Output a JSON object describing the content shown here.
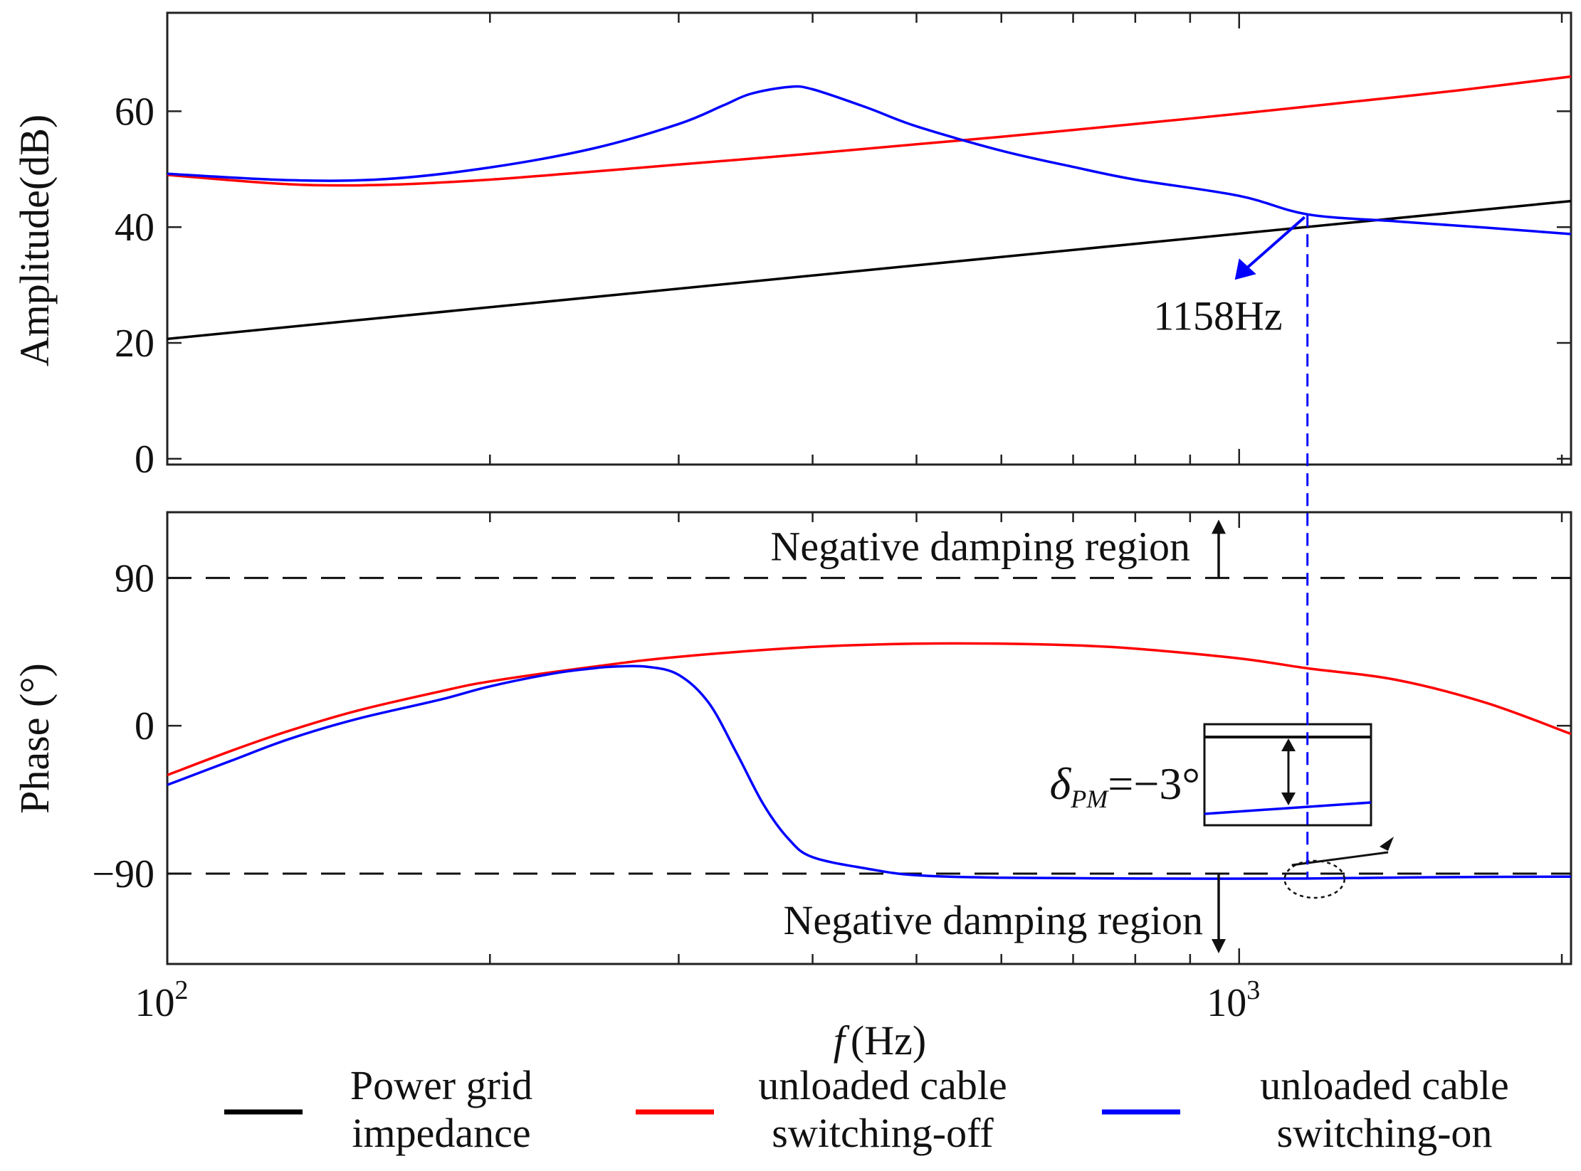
{
  "chart_data": [
    {
      "type": "line",
      "panel": "top",
      "ylabel": "Amplitude(dB)",
      "ylim": [
        -1,
        77
      ],
      "yticks": [
        0,
        20,
        40,
        60
      ],
      "xscale": "log",
      "xlim": [
        100,
        2040
      ],
      "series": [
        {
          "name": "Power grid impedance",
          "color": "#000000",
          "x": [
            100,
            2040
          ],
          "y": [
            20.7,
            44.5
          ]
        },
        {
          "name": "unloaded cable switching-off",
          "color": "#ff0000",
          "x": [
            100,
            130,
            160,
            200,
            250,
            300,
            400,
            500,
            600,
            800,
            1000,
            1300,
            1600,
            2040
          ],
          "y": [
            49.0,
            47.4,
            47.3,
            48.2,
            49.6,
            50.8,
            52.7,
            54.3,
            55.6,
            57.8,
            59.6,
            61.8,
            63.6,
            66.0
          ]
        },
        {
          "name": "unloaded cable switching-on",
          "color": "#0000ff",
          "x": [
            100,
            130,
            160,
            200,
            250,
            300,
            330,
            350,
            380,
            400,
            450,
            500,
            600,
            700,
            800,
            1000,
            1158,
            1400,
            1700,
            2040
          ],
          "y": [
            49.2,
            48.1,
            48.3,
            50.3,
            53.6,
            57.8,
            61.0,
            63.0,
            64.2,
            63.8,
            60.6,
            57.4,
            53.2,
            50.4,
            48.2,
            45.4,
            42.2,
            41.0,
            39.9,
            38.8
          ]
        }
      ],
      "annotations": [
        {
          "text": "1158Hz",
          "x": 1158,
          "y": 42.2
        }
      ]
    },
    {
      "type": "line",
      "panel": "bottom",
      "ylabel": "Phase (°)",
      "xlabel_italic": "f",
      "xlabel_rest": "(Hz)",
      "ylim": [
        -145,
        130
      ],
      "yticks": [
        -90,
        0,
        90
      ],
      "ytick_labels": [
        "−90",
        "0",
        "90"
      ],
      "xscale": "log",
      "xlim": [
        100,
        2040
      ],
      "xtick_base": [
        "10",
        "10"
      ],
      "xtick_exp": [
        "2",
        "3"
      ],
      "xticks": [
        100,
        1000
      ],
      "reference_lines": [
        90,
        -90
      ],
      "series": [
        {
          "name": "unloaded cable switching-off",
          "color": "#ff0000",
          "x": [
            100,
            115,
            130,
            150,
            180,
            200,
            250,
            300,
            400,
            500,
            600,
            700,
            800,
            1000,
            1158,
            1400,
            1700,
            2040
          ],
          "y": [
            -30,
            -15,
            -3,
            9,
            21,
            27,
            36,
            42,
            48,
            50,
            50,
            49,
            47,
            41,
            35,
            28,
            14,
            -5
          ]
        },
        {
          "name": "unloaded cable switching-on",
          "color": "#0000ff",
          "x": [
            100,
            115,
            130,
            150,
            180,
            200,
            230,
            250,
            260,
            280,
            300,
            320,
            340,
            360,
            380,
            400,
            450,
            500,
            600,
            800,
            1158,
            1500,
            2040
          ],
          "y": [
            -36,
            -21,
            -8,
            4,
            16,
            24,
            32,
            35,
            36,
            36,
            31,
            14,
            -17,
            -48,
            -69,
            -80,
            -87,
            -91,
            -92.5,
            -93,
            -93,
            -92.2,
            -91.8
          ]
        }
      ],
      "annotations": [
        {
          "text": "Negative damping region",
          "position": "above +90 line"
        },
        {
          "text": "Negative damping region",
          "position": "below −90 line"
        },
        {
          "symbol": "δ",
          "subscript": "PM",
          "text": "=−3°"
        }
      ]
    }
  ],
  "legend": [
    {
      "line1": "Power grid",
      "line2": "impedance",
      "color": "#000000"
    },
    {
      "line1": "unloaded cable",
      "line2": "switching-off",
      "color": "#ff0000"
    },
    {
      "line1": "unloaded cable",
      "line2": "switching-on",
      "color": "#0000ff"
    }
  ]
}
